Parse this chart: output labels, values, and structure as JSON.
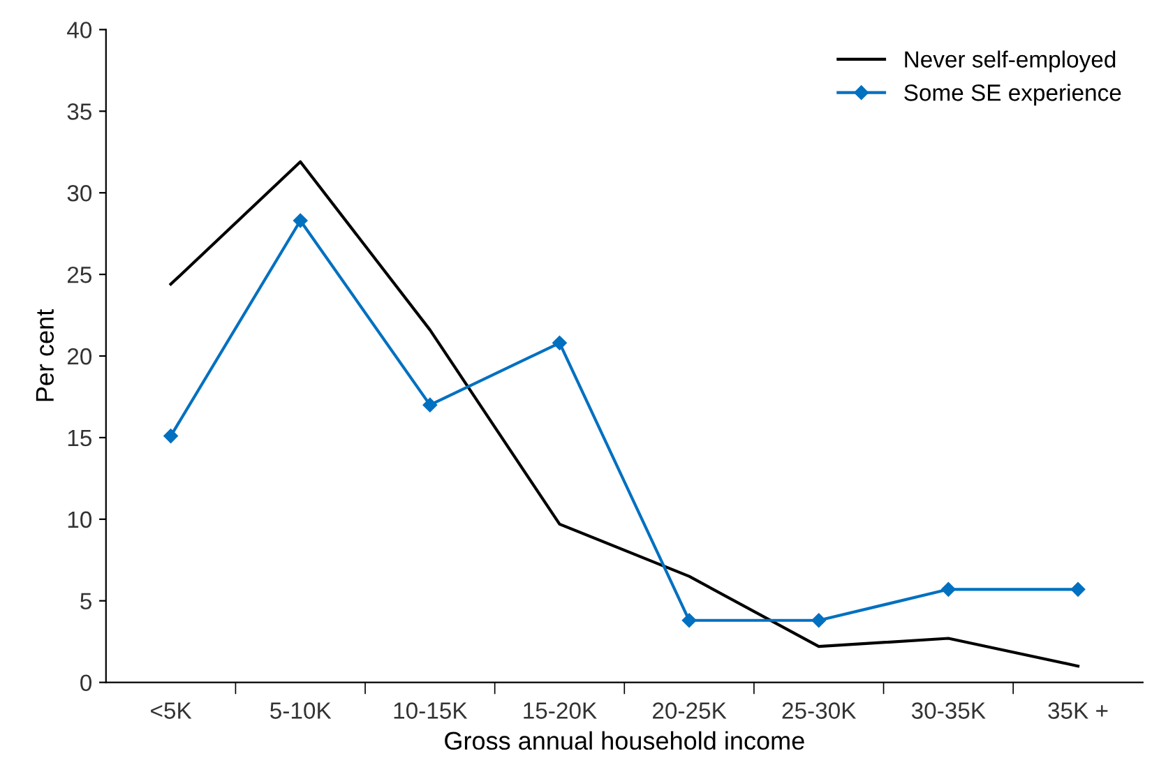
{
  "chart_data": {
    "type": "line",
    "xlabel": "Gross annual household income",
    "ylabel": "Per cent",
    "categories": [
      "<5K",
      "5-10K",
      "10-15K",
      "15-20K",
      "20-25K",
      "25-30K",
      "30-35K",
      "35K +"
    ],
    "series": [
      {
        "name": "Never self-employed",
        "color": "#000000",
        "marker": "none",
        "values": [
          24.4,
          31.9,
          21.6,
          9.7,
          6.5,
          2.2,
          2.7,
          1.0
        ]
      },
      {
        "name": "Some SE experience",
        "color": "#0070c0",
        "marker": "diamond",
        "values": [
          15.1,
          28.3,
          17.0,
          20.8,
          3.8,
          3.8,
          5.7,
          5.7
        ]
      }
    ],
    "ylim": [
      0,
      40
    ],
    "yticks": [
      0,
      5,
      10,
      15,
      20,
      25,
      30,
      35,
      40
    ],
    "grid": false,
    "legend": "top right"
  }
}
